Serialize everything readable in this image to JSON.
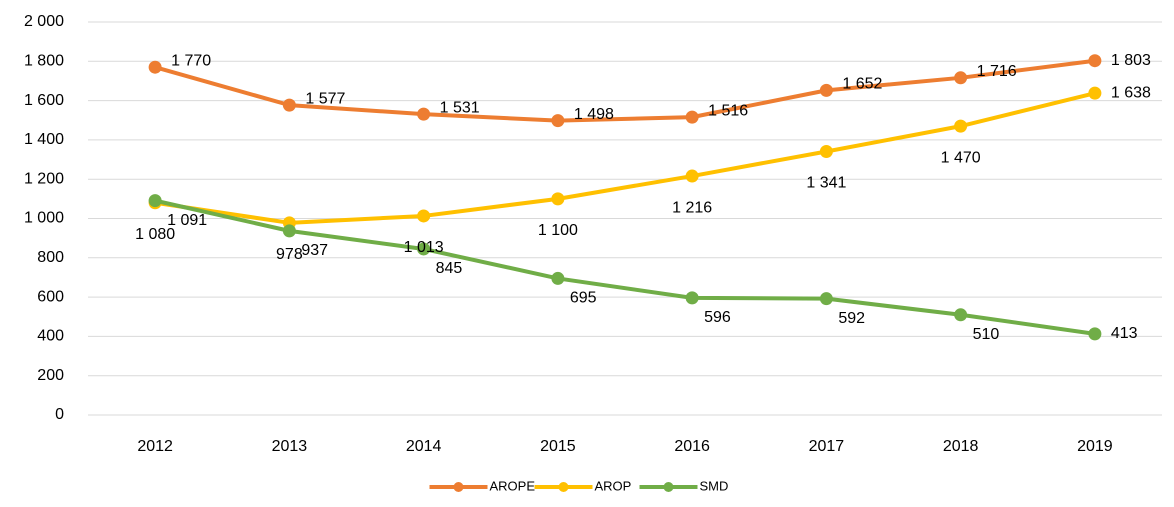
{
  "chart_data": {
    "type": "line",
    "categories": [
      "2012",
      "2013",
      "2014",
      "2015",
      "2016",
      "2017",
      "2018",
      "2019"
    ],
    "series": [
      {
        "name": "AROPE",
        "color": "#ed7d31",
        "values": [
          1770,
          1577,
          1531,
          1498,
          1516,
          1652,
          1716,
          1803
        ],
        "value_labels": [
          "1 770",
          "1 577",
          "1 531",
          "1 498",
          "1 516",
          "1 652",
          "1 716",
          "1 803"
        ]
      },
      {
        "name": "AROP",
        "color": "#ffc000",
        "values": [
          1080,
          978,
          1013,
          1100,
          1216,
          1341,
          1470,
          1638
        ],
        "value_labels": [
          "1 080",
          "978",
          "1 013",
          "1 100",
          "1 216",
          "1 341",
          "1 470",
          "1 638"
        ]
      },
      {
        "name": "SMD",
        "color": "#70ad47",
        "values": [
          1091,
          937,
          845,
          695,
          596,
          592,
          510,
          413
        ],
        "value_labels": [
          "1 091",
          "937",
          "845",
          "695",
          "596",
          "592",
          "510",
          "413"
        ]
      }
    ],
    "ylim": [
      0,
      2000
    ],
    "yticks": [
      0,
      200,
      400,
      600,
      800,
      {
        "value": 1000,
        "label": "1 000"
      },
      {
        "value": 1200,
        "label": "1 200"
      },
      {
        "value": 1400,
        "label": "1 400"
      },
      {
        "value": 1600,
        "label": "1 600"
      },
      {
        "value": 1800,
        "label": "1 800"
      },
      {
        "value": 2000,
        "label": "2 000"
      }
    ],
    "grid": true,
    "legend": "bottom"
  }
}
